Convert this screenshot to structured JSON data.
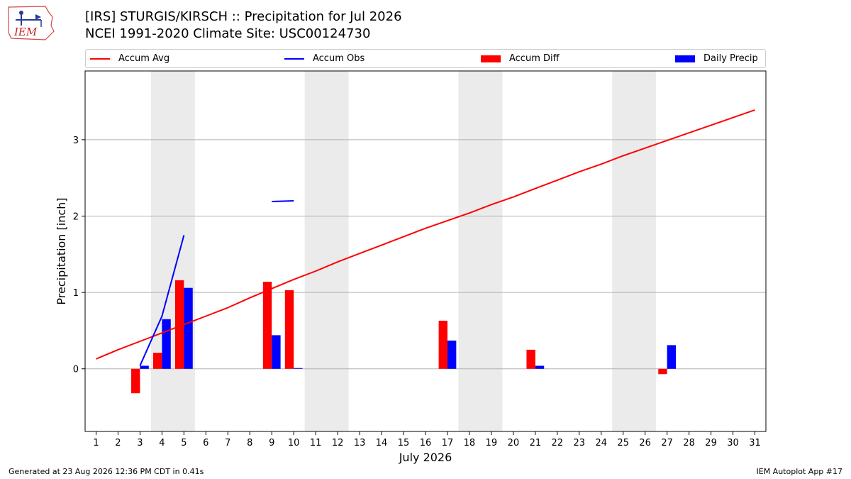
{
  "header": {
    "logo_text": "IEM",
    "title_line1": "[IRS] STURGIS/KIRSCH :: Precipitation for Jul 2026",
    "title_line2": "NCEI 1991-2020 Climate Site: USC00124730"
  },
  "legend": {
    "items": [
      {
        "label": "Accum Avg",
        "kind": "line",
        "color": "#ff0000"
      },
      {
        "label": "Accum Obs",
        "kind": "line",
        "color": "#0000ff"
      },
      {
        "label": "Accum Diff",
        "kind": "patch",
        "color": "#ff0000"
      },
      {
        "label": "Daily Precip",
        "kind": "patch",
        "color": "#0000ff"
      }
    ]
  },
  "footer": {
    "left": "Generated at 23 Aug 2026 12:36 PM CDT in 0.41s",
    "right": "IEM Autoplot App #17"
  },
  "chart_data": {
    "type": "bar",
    "xlabel": "July 2026",
    "ylabel": "Precipitation [inch]",
    "x": [
      1,
      2,
      3,
      4,
      5,
      6,
      7,
      8,
      9,
      10,
      11,
      12,
      13,
      14,
      15,
      16,
      17,
      18,
      19,
      20,
      21,
      22,
      23,
      24,
      25,
      26,
      27,
      28,
      29,
      30,
      31
    ],
    "xlim": [
      0.5,
      31.5
    ],
    "ylim": [
      -0.82,
      3.9
    ],
    "yticks": [
      0,
      1,
      2,
      3
    ],
    "grid": "horizontal",
    "legend_position": "top",
    "weekend_shading": [
      [
        3.5,
        5.5
      ],
      [
        10.5,
        12.5
      ],
      [
        17.5,
        19.5
      ],
      [
        24.5,
        26.5
      ]
    ],
    "series": [
      {
        "name": "Accum Avg",
        "kind": "line",
        "color": "#ff0000",
        "values": [
          0.13,
          0.25,
          0.36,
          0.47,
          0.58,
          0.69,
          0.8,
          0.93,
          1.05,
          1.17,
          1.28,
          1.4,
          1.51,
          1.62,
          1.73,
          1.84,
          1.94,
          2.04,
          2.15,
          2.25,
          2.36,
          2.47,
          2.58,
          2.68,
          2.79,
          2.89,
          2.99,
          3.09,
          3.19,
          3.29,
          3.39
        ]
      },
      {
        "name": "Accum Obs",
        "kind": "line",
        "color": "#0000ff",
        "values": [
          null,
          null,
          0.04,
          0.69,
          1.75,
          null,
          null,
          null,
          2.19,
          2.2,
          null,
          null,
          null,
          null,
          null,
          null,
          null,
          null,
          null,
          null,
          null,
          null,
          null,
          null,
          null,
          null,
          null,
          null,
          null,
          null,
          null
        ]
      },
      {
        "name": "Accum Diff",
        "kind": "bar",
        "color": "#ff0000",
        "values": [
          null,
          null,
          -0.32,
          0.21,
          1.16,
          null,
          null,
          null,
          1.14,
          1.03,
          null,
          null,
          null,
          null,
          null,
          null,
          0.63,
          null,
          null,
          null,
          0.25,
          null,
          null,
          null,
          null,
          null,
          -0.07,
          null,
          null,
          null,
          null
        ]
      },
      {
        "name": "Daily Precip",
        "kind": "bar",
        "color": "#0000ff",
        "values": [
          null,
          null,
          0.04,
          0.65,
          1.06,
          null,
          null,
          null,
          0.44,
          0.01,
          null,
          null,
          null,
          null,
          null,
          null,
          0.37,
          null,
          null,
          null,
          0.04,
          null,
          null,
          null,
          null,
          null,
          0.31,
          null,
          null,
          null,
          null
        ]
      }
    ]
  }
}
